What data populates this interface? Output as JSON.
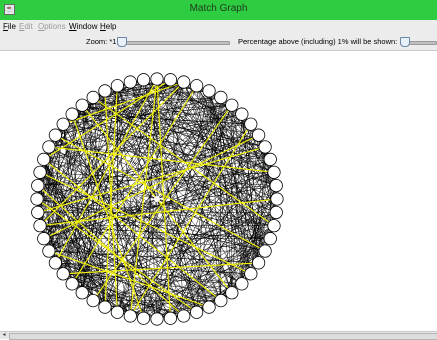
{
  "window": {
    "title": "Match Graph",
    "icon": "java-app-icon"
  },
  "menu": {
    "items": [
      {
        "mnemonic": "F",
        "rest": "ile",
        "enabled": true
      },
      {
        "mnemonic": "E",
        "rest": "dit",
        "enabled": false
      },
      {
        "mnemonic": "O",
        "rest": "ptions",
        "enabled": false
      },
      {
        "mnemonic": "W",
        "rest": "indow",
        "enabled": true
      },
      {
        "mnemonic": "H",
        "rest": "elp",
        "enabled": true
      }
    ]
  },
  "toolbar": {
    "zoom_label": "Zoom: *1",
    "zoom_value": 0,
    "percentage_label": "Percentage above (including) 1% will be shown:",
    "percentage_value": 0
  },
  "graph": {
    "node_count": 56,
    "node_fill": "#ffffff",
    "node_stroke": "#000000",
    "edge_color": "#000000",
    "highlight_color": "#f2f200",
    "center_marker_color": "#ffffff"
  },
  "scrollbar": {
    "left_arrow": "◂"
  }
}
